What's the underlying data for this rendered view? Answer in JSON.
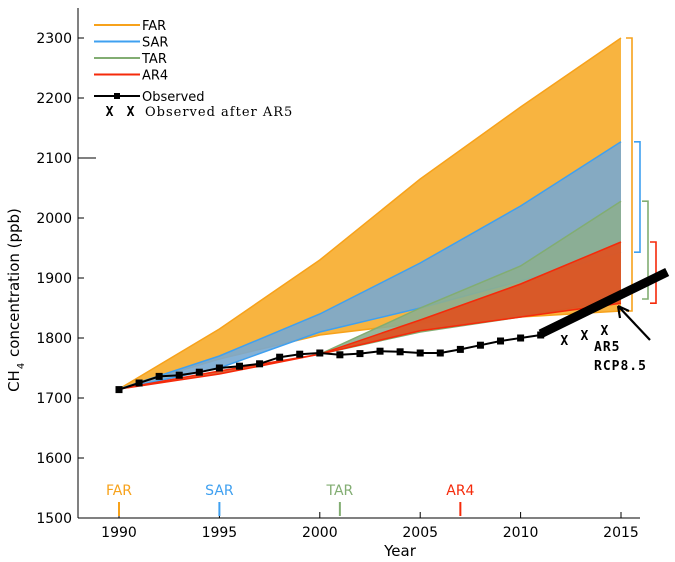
{
  "chart_data": {
    "type": "area",
    "xlabel": "Year",
    "ylabel": "CH",
    "ylabel_sub": "4",
    "ylabel_rest": " concentration (ppb)",
    "xlim": [
      1987,
      2017.5
    ],
    "ylim": [
      1500,
      2350
    ],
    "xticks": [
      1990,
      1995,
      2000,
      2005,
      2010,
      2015
    ],
    "yticks": [
      1500,
      1600,
      1700,
      1800,
      1900,
      2000,
      2100,
      2200,
      2300
    ],
    "legend_position": "top-left",
    "series": [
      {
        "name": "FAR",
        "color": "#f7a21b",
        "fill": "#f8b440",
        "x": [
          1990,
          1995,
          2000,
          2005,
          2010,
          2015
        ],
        "upper": [
          1715,
          1815,
          1930,
          2065,
          2185,
          2300
        ],
        "lower": [
          1715,
          1765,
          1805,
          1825,
          1835,
          1845
        ]
      },
      {
        "name": "SAR",
        "color": "#3fa0f0",
        "fill": "#78a8d0",
        "x": [
          1990,
          1995,
          2000,
          2005,
          2010,
          2015
        ],
        "upper": [
          1715,
          1770,
          1840,
          1925,
          2020,
          2127
        ],
        "lower": [
          1715,
          1750,
          1810,
          1850,
          1895,
          1943
        ]
      },
      {
        "name": "TAR",
        "color": "#82ad72",
        "fill": "#8cae90",
        "x": [
          2000,
          2005,
          2010,
          2015
        ],
        "upper": [
          1773,
          1850,
          1920,
          2028
        ],
        "lower": [
          1773,
          1810,
          1835,
          1865
        ]
      },
      {
        "name": "AR4",
        "color": "#f52a0a",
        "fill": "#e0501e",
        "x": [
          1990,
          1995,
          2000,
          2005,
          2010,
          2015
        ],
        "upper": [
          1715,
          1745,
          1773,
          1830,
          1890,
          1960
        ],
        "lower": [
          1715,
          1740,
          1773,
          1812,
          1835,
          1858
        ]
      }
    ],
    "observed": {
      "name": "Observed",
      "x": [
        1990,
        1991,
        1992,
        1993,
        1994,
        1995,
        1996,
        1997,
        1998,
        1999,
        2000,
        2001,
        2002,
        2003,
        2004,
        2005,
        2006,
        2007,
        2008,
        2009,
        2010,
        2011
      ],
      "y": [
        1714,
        1725,
        1736,
        1738,
        1743,
        1750,
        1753,
        1757,
        1768,
        1773,
        1775,
        1772,
        1774,
        1778,
        1777,
        1775,
        1775,
        1781,
        1788,
        1795,
        1800,
        1805
      ]
    },
    "observed_after_ar5": {
      "name": "Observed after AR5",
      "x": [
        2012.2,
        2013.2,
        2014.2
      ],
      "y": [
        1808,
        1817,
        1825
      ]
    },
    "ar5": {
      "label1": "AR5",
      "label2": "RCP8.5",
      "x": [
        2011,
        2017.3
      ],
      "y": [
        1807,
        1910
      ]
    },
    "report_markers": [
      {
        "name": "FAR",
        "year": 1990,
        "color": "#f7a21b"
      },
      {
        "name": "SAR",
        "year": 1995,
        "color": "#3fa0f0"
      },
      {
        "name": "TAR",
        "year": 2001,
        "color": "#82ad72"
      },
      {
        "name": "AR4",
        "year": 2007,
        "color": "#f52a0a"
      }
    ],
    "x_marker_glyph": "X"
  }
}
